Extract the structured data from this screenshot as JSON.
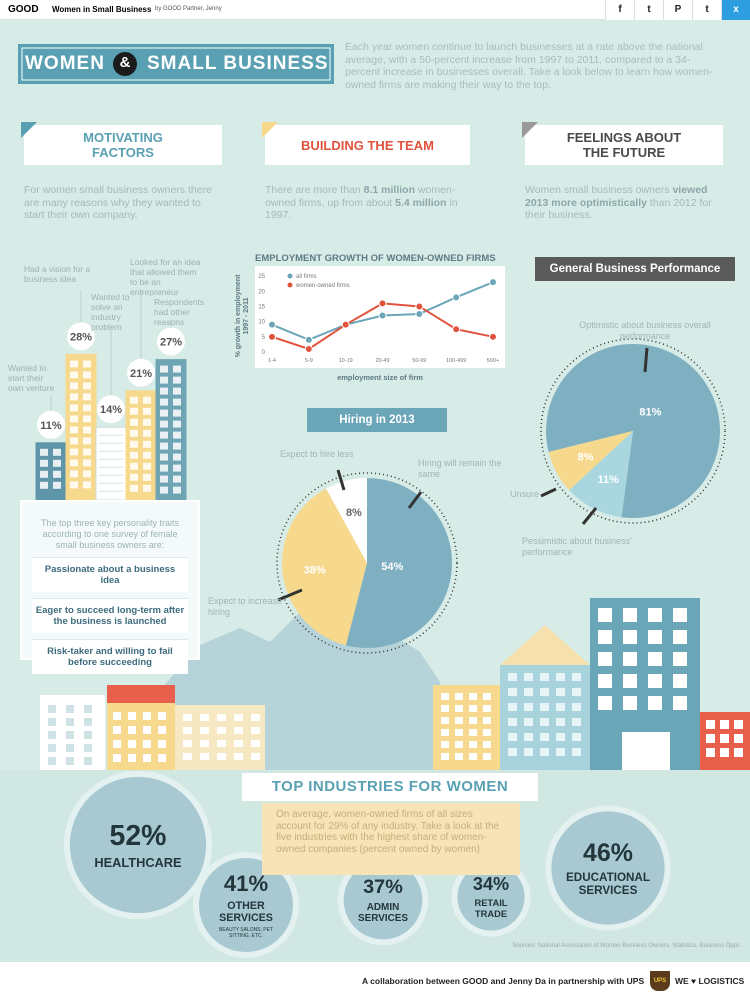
{
  "header": {
    "logo": "GOOD",
    "title": "Women in Small Business",
    "byline": "by GOOD Partner, Jenny",
    "share": [
      "f",
      "t",
      "P",
      "t",
      "x"
    ]
  },
  "hero": {
    "title_left": "WOMEN",
    "ampersand": "&",
    "title_right": "SMALL BUSINESS",
    "intro": "Each year women continue to launch businesses at a rate above the national average, with a 50-percent increase from 1997 to 2011, compared to a 34-percent increase in businesses overall. Take a look below to learn how women-owned firms are making their way to the top."
  },
  "sections": [
    {
      "heading": "MOTIVATING FACTORS",
      "text": [
        {
          "text": "For women small business owners there are many reasons why they wanted to start their own company."
        }
      ]
    },
    {
      "heading": "BUILDING THE TEAM",
      "text": [
        {
          "text": "There are more than "
        },
        {
          "text": "8.1 million",
          "bold": true
        },
        {
          "text": " women-owned firms, up from about "
        },
        {
          "text": "5.4 million",
          "bold": true
        },
        {
          "text": " in 1997."
        }
      ]
    },
    {
      "heading": "FEELINGS ABOUT THE FUTURE",
      "text": [
        {
          "text": "Women small business owners "
        },
        {
          "text": "viewed 2013 more optimistically",
          "bold": true
        },
        {
          "text": " than 2012 for their business."
        }
      ]
    }
  ],
  "traits": {
    "intro": "The top three key personality traits according to one survey of female small business owners are:",
    "items": [
      "Passionate about a business idea",
      "Eager to succeed long-term after the business is launched",
      "Risk-taker and willing to fail before succeeding"
    ]
  },
  "chart_data": [
    {
      "type": "bar",
      "categories": [
        "Wanted to start their own venture",
        "Had a vision for a business idea",
        "Wanted to solve an industry problem",
        "Looked for an idea that allowed them to be an entrepreneur",
        "Respondents had other reasons"
      ],
      "values": [
        11,
        28,
        14,
        21,
        27
      ],
      "value_labels": [
        "11%",
        "28%",
        "14%",
        "21%",
        "27%"
      ],
      "colors": [
        "#5e95a8",
        "#f6d98c",
        "#ffffff",
        "#f6d98c",
        "#6fa4b4"
      ]
    },
    {
      "type": "line",
      "title": "EMPLOYMENT GROWTH OF WOMEN-OWNED FIRMS",
      "ylabel": "% growth in employment 1997 - 2011",
      "xlabel": "employment size of firm",
      "categories": [
        "1-4",
        "5-9",
        "10-19",
        "20-49",
        "50-99",
        "100-499",
        "500+"
      ],
      "series": [
        {
          "name": "all firms",
          "color": "#6aa5b8",
          "values": [
            9,
            4,
            9,
            12,
            12.5,
            18,
            23
          ]
        },
        {
          "name": "women-owned firms",
          "color": "#e0533d",
          "values": [
            5,
            1,
            9,
            16,
            15,
            7.5,
            5
          ]
        }
      ],
      "ylim": [
        0,
        27
      ],
      "yticks": [
        0,
        5,
        10,
        15,
        20,
        25
      ],
      "grid": false,
      "legend": "upper left"
    },
    {
      "type": "pie",
      "title": "Hiring in 2013",
      "categories": [
        "Hiring will remain the same",
        "Expect to increase hiring",
        "Expect to hire less"
      ],
      "values": [
        54,
        38,
        8
      ],
      "value_labels": [
        "54%",
        "38%",
        "8%"
      ],
      "colors": [
        "#7fb0c2",
        "#f6d98c",
        "#ffffff"
      ]
    },
    {
      "type": "pie",
      "title": "General Business Performance",
      "categories": [
        "Optimistic about business overall performance",
        "Pessimistic about business' performance",
        "Unsure"
      ],
      "values": [
        81,
        11,
        8
      ],
      "value_labels": [
        "81%",
        "11%",
        "8%"
      ],
      "colors": [
        "#7fb0c2",
        "#a9d6df",
        "#f6d98c"
      ]
    },
    {
      "type": "bubble",
      "title": "TOP INDUSTRIES FOR WOMEN",
      "subtitle": "On average, women-owned firms of all sizes account for 29% of any industry. Take a look at the five industries with the highest share of women-owned companies (percent owned by women)",
      "categories": [
        "HEALTHCARE",
        "OTHER SERVICES",
        "ADMIN SERVICES",
        "RETAIL TRADE",
        "EDUCATIONAL SERVICES"
      ],
      "notes": [
        null,
        "BEAUTY SALONS, PET SITTING, ETC.",
        null,
        null,
        null
      ],
      "values": [
        52,
        41,
        37,
        34,
        46
      ],
      "value_labels": [
        "52%",
        "41%",
        "37%",
        "34%",
        "46%"
      ],
      "color": "#a9c9d2"
    }
  ],
  "sources": "Sources: National Association of Women Business Owners, Statistics, Business Opps",
  "footer": {
    "credit": "A collaboration between GOOD and Jenny Da in partnership with UPS",
    "ups": "UPS",
    "slogan": "WE ♥ LOGISTICS"
  }
}
